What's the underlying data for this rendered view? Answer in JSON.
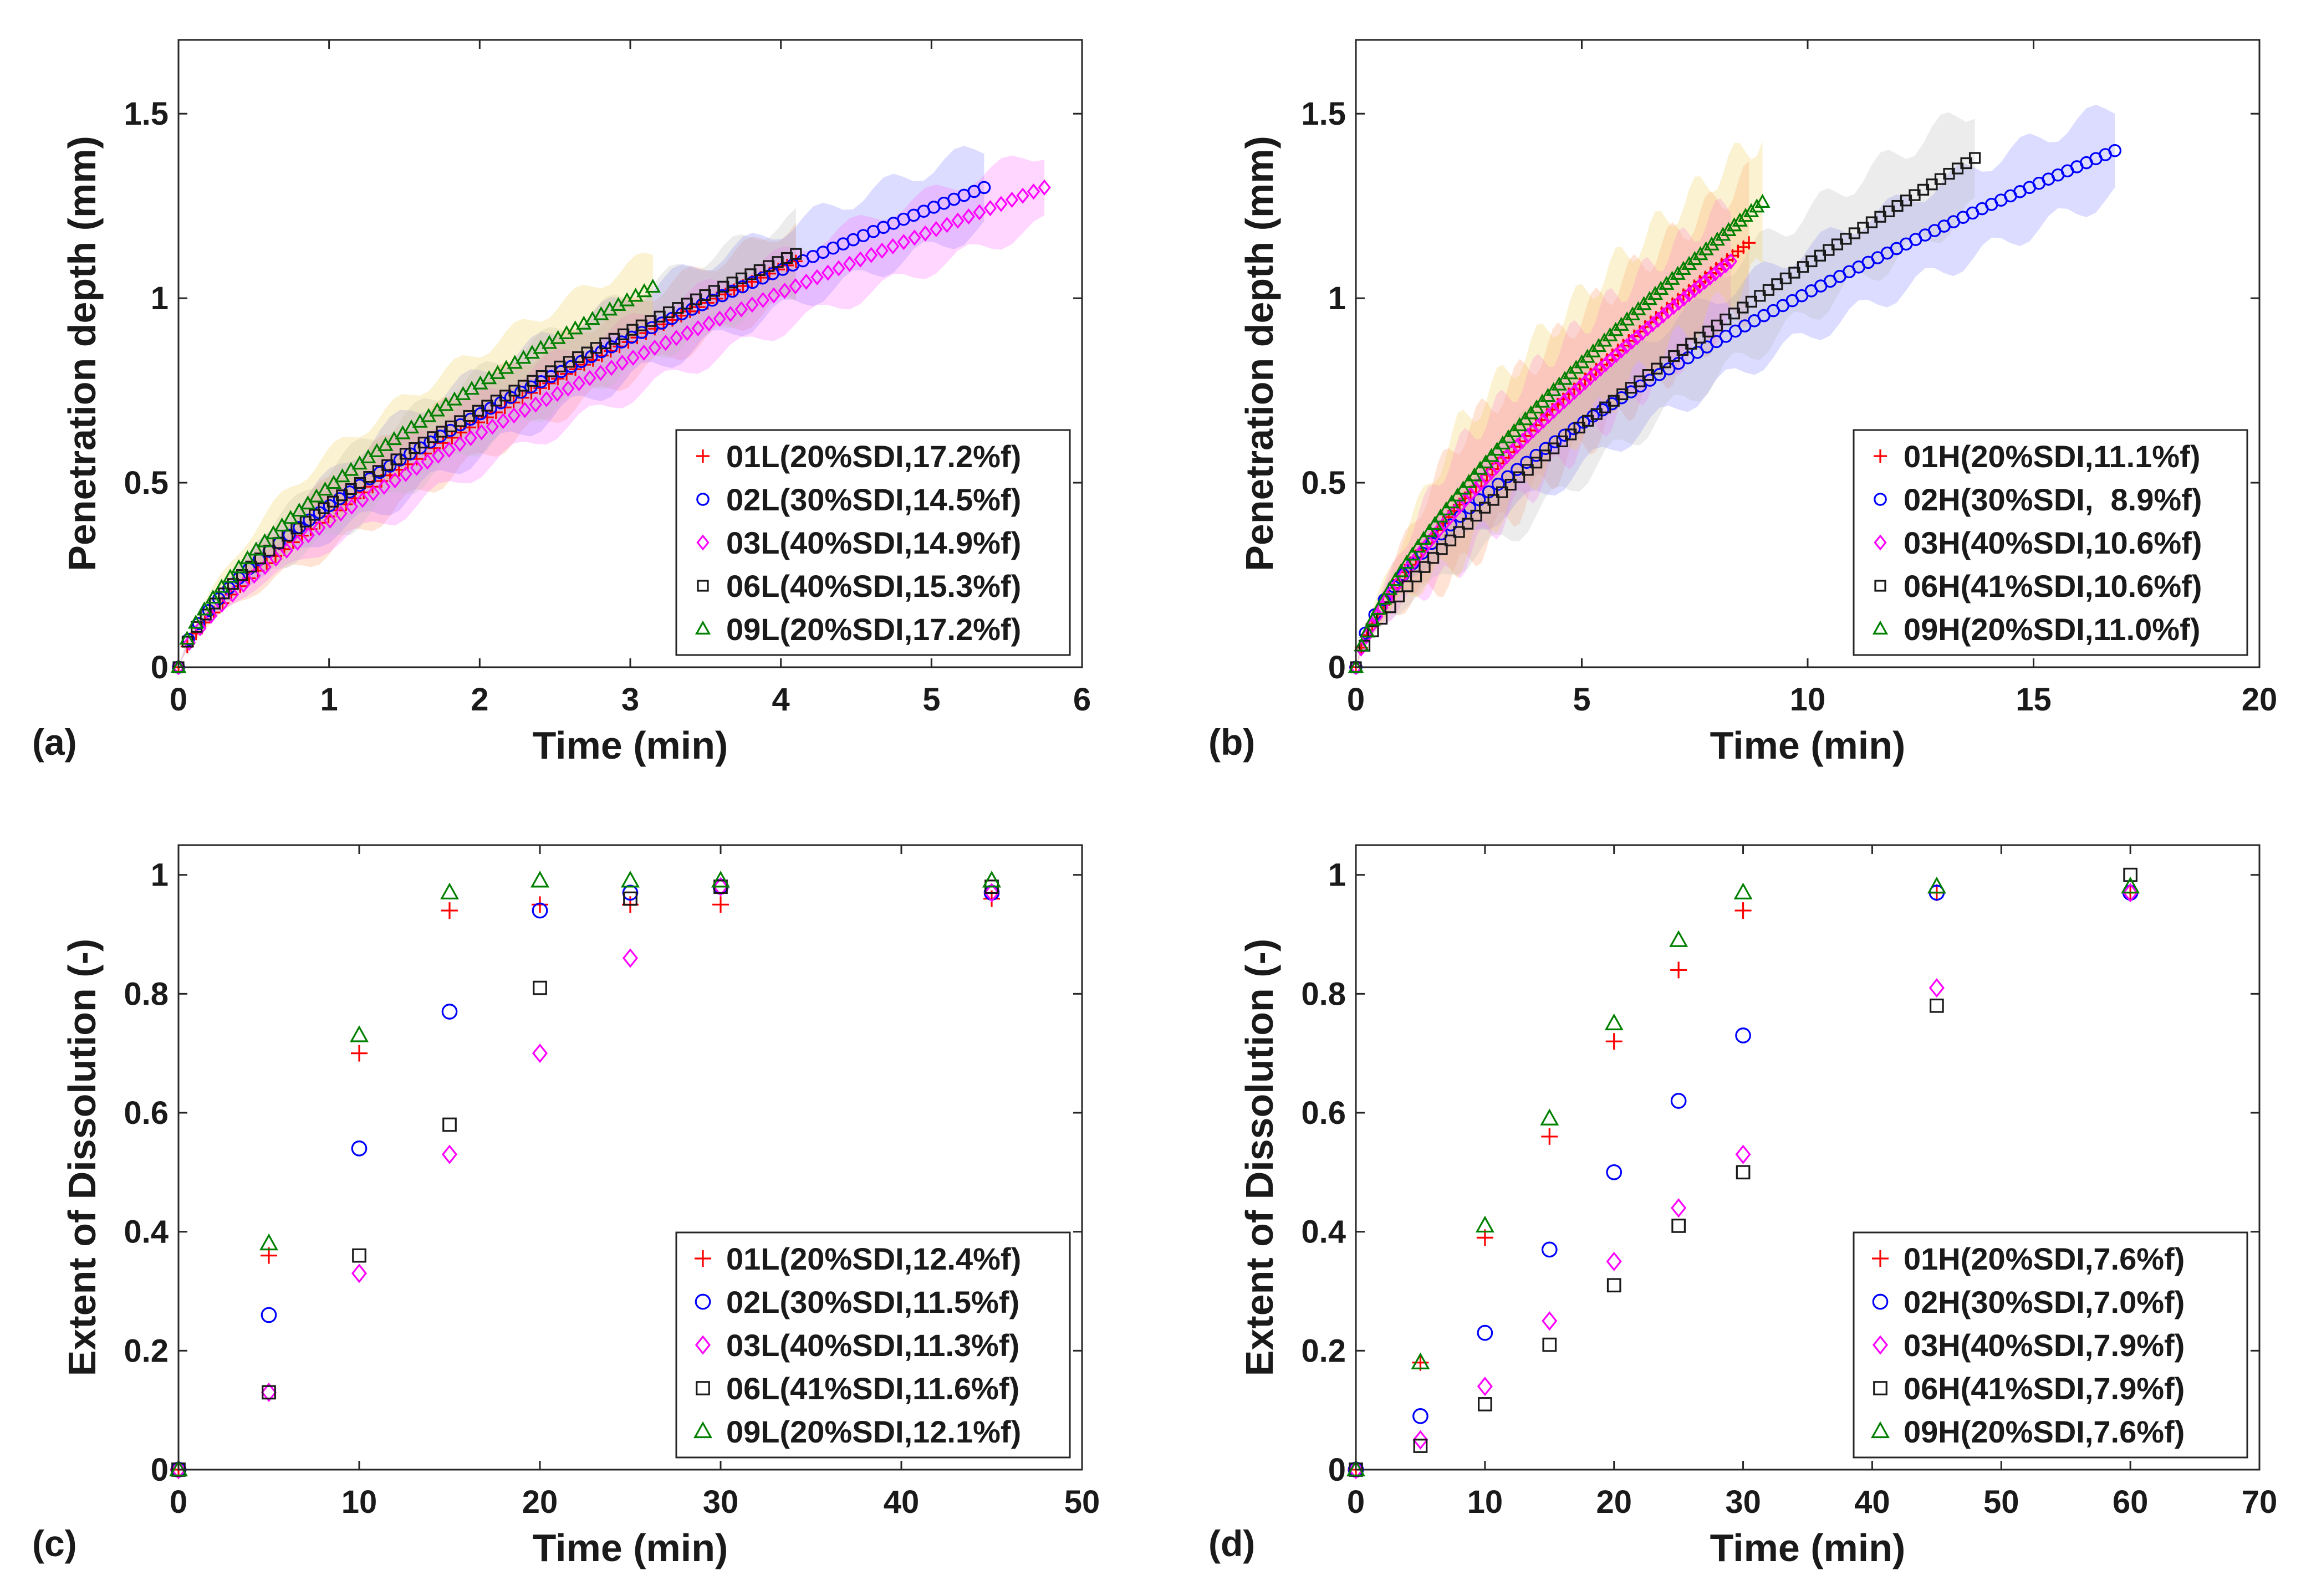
{
  "chart_data": [
    {
      "id": "a",
      "panel_label": "(a)",
      "type": "scatter",
      "xlabel": "Time (min)",
      "ylabel": "Penetration depth (mm)",
      "xlim": [
        0,
        6
      ],
      "ylim": [
        0,
        1.7
      ],
      "xticks": [
        0,
        1,
        2,
        3,
        4,
        5,
        6
      ],
      "yticks": [
        0,
        0.5,
        1,
        1.5
      ],
      "ytick_labels": [
        "0",
        "0.5",
        "1",
        "1.5"
      ],
      "legend_position": "bottom-right",
      "curve_mode": true,
      "series": [
        {
          "name": "01L(20%SDI,17.2%f)",
          "marker": "plus",
          "color": "#ff0000",
          "t_end": 4.1,
          "y_end": 1.1,
          "exponent": 0.7,
          "n_points": 70,
          "band_width": 0.1,
          "band_color": "#ff9f6a"
        },
        {
          "name": "02L(30%SDI,14.5%f)",
          "marker": "circle",
          "color": "#0000ff",
          "t_end": 5.35,
          "y_end": 1.3,
          "exponent": 0.65,
          "n_points": 80,
          "band_width": 0.11,
          "band_color": "#7d83ff"
        },
        {
          "name": "03L(40%SDI,14.9%f)",
          "marker": "diamond",
          "color": "#ff00ff",
          "t_end": 5.75,
          "y_end": 1.3,
          "exponent": 0.68,
          "n_points": 80,
          "band_width": 0.1,
          "band_color": "#ff6bff"
        },
        {
          "name": "06L(40%SDI,15.3%f)",
          "marker": "square",
          "color": "#1a1a1a",
          "t_end": 4.1,
          "y_end": 1.12,
          "exponent": 0.66,
          "n_points": 68,
          "band_width": 0.1,
          "band_color": "#b9b9b9"
        },
        {
          "name": "09L(20%SDI,17.2%f)",
          "marker": "triangle",
          "color": "#008000",
          "t_end": 3.15,
          "y_end": 1.03,
          "exponent": 0.65,
          "n_points": 55,
          "band_width": 0.09,
          "band_color": "#f0cf5c"
        }
      ]
    },
    {
      "id": "b",
      "panel_label": "(b)",
      "type": "scatter",
      "xlabel": "Time (min)",
      "ylabel": "Penetration depth (mm)",
      "xlim": [
        0,
        20
      ],
      "ylim": [
        0,
        1.7
      ],
      "xticks": [
        0,
        5,
        10,
        15,
        20
      ],
      "yticks": [
        0,
        0.5,
        1,
        1.5
      ],
      "ytick_labels": [
        "0",
        "0.5",
        "1",
        "1.5"
      ],
      "legend_position": "bottom-right",
      "curve_mode": true,
      "series": [
        {
          "name": "01H(20%SDI,11.1%f)",
          "marker": "plus",
          "color": "#ff0000",
          "t_end": 8.7,
          "y_end": 1.15,
          "exponent": 0.72,
          "n_points": 72,
          "band_width": 0.18,
          "band_color": "#ff9f6a"
        },
        {
          "name": "02H(30%SDI,  8.9%f)",
          "marker": "circle",
          "color": "#0000ff",
          "t_end": 16.8,
          "y_end": 1.4,
          "exponent": 0.62,
          "n_points": 80,
          "band_width": 0.12,
          "band_color": "#7d83ff"
        },
        {
          "name": "03H(40%SDI,10.6%f)",
          "marker": "diamond",
          "color": "#ff00ff",
          "t_end": 8.3,
          "y_end": 1.1,
          "exponent": 0.72,
          "n_points": 72,
          "band_width": 0.16,
          "band_color": "#ff6bff"
        },
        {
          "name": "06H(41%SDI,10.6%f)",
          "marker": "square",
          "color": "#1a1a1a",
          "t_end": 13.7,
          "y_end": 1.38,
          "exponent": 0.74,
          "n_points": 72,
          "band_width": 0.14,
          "band_color": "#b9b9b9"
        },
        {
          "name": "09H(20%SDI,11.0%f)",
          "marker": "triangle",
          "color": "#008000",
          "t_end": 9.0,
          "y_end": 1.26,
          "exponent": 0.72,
          "n_points": 72,
          "band_width": 0.18,
          "band_color": "#f0cf5c"
        }
      ]
    },
    {
      "id": "c",
      "panel_label": "(c)",
      "type": "scatter",
      "xlabel": "Time (min)",
      "ylabel": "Extent of Dissolution (-)",
      "xlim": [
        0,
        50
      ],
      "ylim": [
        0,
        1.05
      ],
      "xticks": [
        0,
        10,
        20,
        30,
        40,
        50
      ],
      "yticks": [
        0,
        0.2,
        0.4,
        0.6,
        0.8,
        1
      ],
      "ytick_labels": [
        "0",
        "0.2",
        "0.4",
        "0.6",
        "0.8",
        "1"
      ],
      "legend_position": "bottom-right",
      "curve_mode": false,
      "x": [
        0,
        5,
        10,
        15,
        20,
        25,
        30,
        45
      ],
      "series": [
        {
          "name": "01L(20%SDI,12.4%f)",
          "marker": "plus",
          "color": "#ff0000",
          "values": [
            0,
            0.36,
            0.7,
            0.94,
            0.95,
            0.95,
            0.95,
            0.96
          ]
        },
        {
          "name": "02L(30%SDI,11.5%f)",
          "marker": "circle",
          "color": "#0000ff",
          "values": [
            0,
            0.26,
            0.54,
            0.77,
            0.94,
            0.97,
            0.98,
            0.97
          ]
        },
        {
          "name": "03L(40%SDI,11.3%f)",
          "marker": "diamond",
          "color": "#ff00ff",
          "values": [
            0,
            0.13,
            0.33,
            0.53,
            0.7,
            0.86,
            0.98,
            0.97
          ]
        },
        {
          "name": "06L(41%SDI,11.6%f)",
          "marker": "square",
          "color": "#1a1a1a",
          "values": [
            0,
            0.13,
            0.36,
            0.58,
            0.81,
            0.96,
            0.98,
            0.98
          ]
        },
        {
          "name": "09L(20%SDI,12.1%f)",
          "marker": "triangle",
          "color": "#008000",
          "values": [
            0,
            0.38,
            0.73,
            0.97,
            0.99,
            0.99,
            0.99,
            0.99
          ]
        }
      ]
    },
    {
      "id": "d",
      "panel_label": "(d)",
      "type": "scatter",
      "xlabel": "Time (min)",
      "ylabel": "Extent of Dissolution (-)",
      "xlim": [
        0,
        70
      ],
      "ylim": [
        0,
        1.05
      ],
      "xticks": [
        0,
        10,
        20,
        30,
        40,
        50,
        60,
        70
      ],
      "yticks": [
        0,
        0.2,
        0.4,
        0.6,
        0.8,
        1
      ],
      "ytick_labels": [
        "0",
        "0.2",
        "0.4",
        "0.6",
        "0.8",
        "1"
      ],
      "legend_position": "bottom-right",
      "curve_mode": false,
      "x": [
        0,
        5,
        10,
        15,
        20,
        25,
        30,
        45,
        60
      ],
      "series": [
        {
          "name": "01H(20%SDI,7.6%f)",
          "marker": "plus",
          "color": "#ff0000",
          "values": [
            0,
            0.18,
            0.39,
            0.56,
            0.72,
            0.84,
            0.94,
            0.97,
            0.97
          ]
        },
        {
          "name": "02H(30%SDI,7.0%f)",
          "marker": "circle",
          "color": "#0000ff",
          "values": [
            0,
            0.09,
            0.23,
            0.37,
            0.5,
            0.62,
            0.73,
            0.97,
            0.97
          ]
        },
        {
          "name": "03H(40%SDI,7.9%f)",
          "marker": "diamond",
          "color": "#ff00ff",
          "values": [
            0,
            0.05,
            0.14,
            0.25,
            0.35,
            0.44,
            0.53,
            0.81,
            0.97
          ]
        },
        {
          "name": "06H(41%SDI,7.9%f)",
          "marker": "square",
          "color": "#1a1a1a",
          "values": [
            0,
            0.04,
            0.11,
            0.21,
            0.31,
            0.41,
            0.5,
            0.78,
            1.0
          ]
        },
        {
          "name": "09H(20%SDI,7.6%f)",
          "marker": "triangle",
          "color": "#008000",
          "values": [
            0,
            0.18,
            0.41,
            0.59,
            0.75,
            0.89,
            0.97,
            0.98,
            0.98
          ]
        }
      ]
    }
  ]
}
